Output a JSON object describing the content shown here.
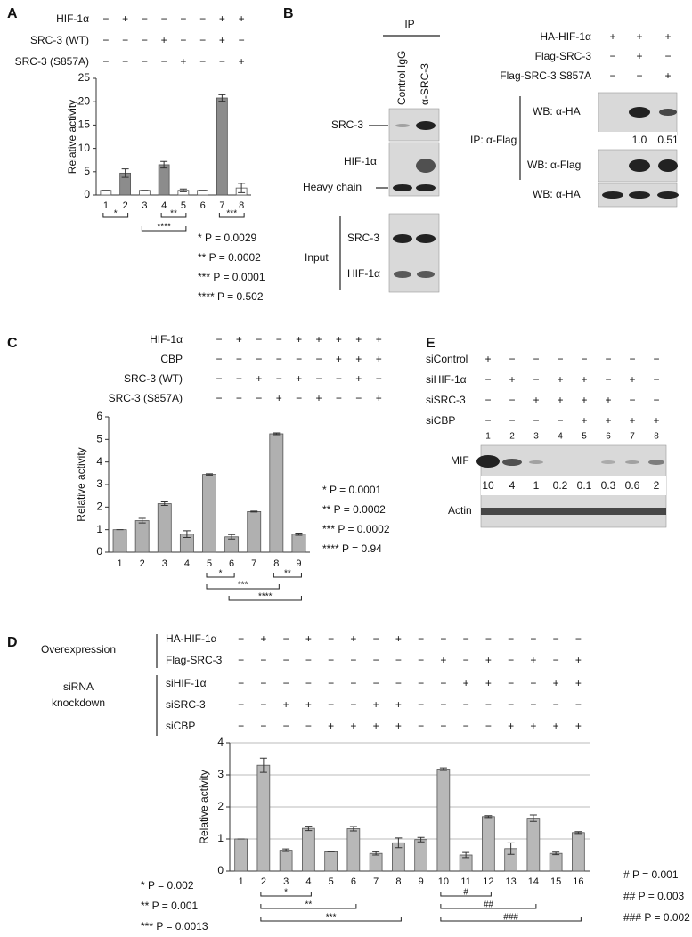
{
  "chart_data": [
    {
      "type": "bar",
      "panel": "A",
      "y_label": "Relative activity",
      "categories": [
        "1",
        "2",
        "3",
        "4",
        "5",
        "6",
        "7",
        "8"
      ],
      "values": [
        1,
        4.7,
        1,
        6.5,
        1,
        1,
        20.8,
        1.5
      ],
      "errors": [
        0,
        0.9,
        0,
        0.7,
        0.3,
        0,
        0.7,
        1.0
      ],
      "colors": [
        "#ffffff",
        "#8c8c8c",
        "#ffffff",
        "#8c8c8c",
        "#ffffff",
        "#ffffff",
        "#8c8c8c",
        "#ffffff"
      ],
      "ylim": [
        0,
        25
      ],
      "yticks": [
        0,
        5,
        10,
        15,
        20,
        25
      ],
      "grid": false,
      "conditions": [
        {
          "name": "HIF-1α",
          "signs": [
            "−",
            "+",
            "−",
            "−",
            "−",
            "−",
            "+",
            "+"
          ]
        },
        {
          "name": "SRC-3 (WT)",
          "signs": [
            "−",
            "−",
            "−",
            "+",
            "−",
            "−",
            "+",
            "−"
          ]
        },
        {
          "name": "SRC-3 (S857A)",
          "signs": [
            "−",
            "−",
            "−",
            "−",
            "+",
            "−",
            "−",
            "+"
          ]
        }
      ],
      "significance": [
        {
          "label": "*",
          "lanes": [
            "1",
            "2"
          ]
        },
        {
          "label": "**",
          "lanes": [
            "4",
            "5"
          ]
        },
        {
          "label": "***",
          "lanes": [
            "7",
            "8"
          ]
        },
        {
          "label": "****",
          "lanes": [
            "3",
            "5"
          ]
        }
      ],
      "p_values": [
        "* P = 0.0029",
        "** P = 0.0002",
        "*** P = 0.0001",
        "**** P = 0.502"
      ]
    },
    {
      "type": "bar",
      "panel": "C",
      "y_label": "Relative activity",
      "categories": [
        "1",
        "2",
        "3",
        "4",
        "5",
        "6",
        "7",
        "8",
        "9"
      ],
      "values": [
        1,
        1.4,
        2.15,
        0.8,
        3.45,
        0.68,
        1.8,
        5.25,
        0.8
      ],
      "errors": [
        0,
        0.1,
        0.08,
        0.15,
        0.03,
        0.1,
        0.02,
        0.04,
        0.05
      ],
      "color": "#b0b0b0",
      "ylim": [
        0,
        6
      ],
      "yticks": [
        0,
        1,
        2,
        3,
        4,
        5,
        6
      ],
      "grid": false,
      "conditions": [
        {
          "name": "HIF-1α",
          "signs": [
            "−",
            "+",
            "−",
            "−",
            "+",
            "+",
            "+",
            "+",
            "+"
          ]
        },
        {
          "name": "CBP",
          "signs": [
            "−",
            "−",
            "−",
            "−",
            "−",
            "−",
            "+",
            "+",
            "+"
          ]
        },
        {
          "name": "SRC-3 (WT)",
          "signs": [
            "−",
            "−",
            "+",
            "−",
            "+",
            "−",
            "−",
            "+",
            "−"
          ]
        },
        {
          "name": "SRC-3 (S857A)",
          "signs": [
            "−",
            "−",
            "−",
            "+",
            "−",
            "+",
            "−",
            "−",
            "+"
          ]
        }
      ],
      "significance": [
        {
          "label": "*",
          "lanes": [
            "5",
            "6"
          ]
        },
        {
          "label": "**",
          "lanes": [
            "8",
            "9"
          ]
        },
        {
          "label": "***",
          "lanes": [
            "5",
            "8"
          ]
        },
        {
          "label": "****",
          "lanes": [
            "6",
            "9"
          ]
        }
      ],
      "p_values": [
        "* P = 0.0001",
        "** P = 0.0002",
        "*** P = 0.0002",
        "**** P = 0.94"
      ]
    },
    {
      "type": "bar",
      "panel": "D",
      "y_label": "Relative activity",
      "categories": [
        "1",
        "2",
        "3",
        "4",
        "5",
        "6",
        "7",
        "8",
        "9",
        "10",
        "11",
        "12",
        "13",
        "14",
        "15",
        "16"
      ],
      "values": [
        1,
        3.3,
        0.65,
        1.33,
        0.6,
        1.32,
        0.55,
        0.88,
        0.98,
        3.18,
        0.5,
        1.7,
        0.7,
        1.65,
        0.55,
        1.2
      ],
      "errors": [
        0,
        0.22,
        0.04,
        0.07,
        0,
        0.07,
        0.05,
        0.15,
        0.07,
        0.04,
        0.08,
        0.03,
        0.18,
        0.1,
        0.04,
        0.03
      ],
      "color": "#b8b8b8",
      "ylim": [
        0,
        4
      ],
      "yticks": [
        0,
        1,
        2,
        3,
        4
      ],
      "grid": true,
      "condition_groups": [
        {
          "name": [
            "Overexpression"
          ],
          "conditions": [
            {
              "name": "HA-HIF-1α",
              "signs": [
                "−",
                "+",
                "−",
                "+",
                "−",
                "+",
                "−",
                "+",
                "−",
                "−",
                "−",
                "−",
                "−",
                "−",
                "−",
                "−"
              ]
            },
            {
              "name": "Flag-SRC-3",
              "signs": [
                "−",
                "−",
                "−",
                "−",
                "−",
                "−",
                "−",
                "−",
                "−",
                "+",
                "−",
                "+",
                "−",
                "+",
                "−",
                "+"
              ]
            }
          ]
        },
        {
          "name": [
            "siRNA",
            "knockdown"
          ],
          "conditions": [
            {
              "name": "siHIF-1α",
              "signs": [
                "−",
                "−",
                "−",
                "−",
                "−",
                "−",
                "−",
                "−",
                "−",
                "−",
                "+",
                "+",
                "−",
                "−",
                "+",
                "+"
              ]
            },
            {
              "name": "siSRC-3",
              "signs": [
                "−",
                "−",
                "+",
                "+",
                "−",
                "−",
                "+",
                "+",
                "−",
                "−",
                "−",
                "−",
                "−",
                "−",
                "−",
                "−"
              ]
            },
            {
              "name": "siCBP",
              "signs": [
                "−",
                "−",
                "−",
                "−",
                "+",
                "+",
                "+",
                "+",
                "−",
                "−",
                "−",
                "−",
                "+",
                "+",
                "+",
                "+"
              ]
            }
          ]
        }
      ],
      "significance": [
        {
          "label": "*",
          "lanes": [
            "2",
            "4"
          ]
        },
        {
          "label": "**",
          "lanes": [
            "2",
            "6"
          ]
        },
        {
          "label": "***",
          "lanes": [
            "2",
            "8"
          ]
        },
        {
          "label": "#",
          "lanes": [
            "10",
            "12"
          ]
        },
        {
          "label": "##",
          "lanes": [
            "10",
            "14"
          ]
        },
        {
          "label": "###",
          "lanes": [
            "10",
            "16"
          ]
        }
      ],
      "p_values": [
        "* P = 0.002",
        "** P = 0.001",
        "*** P = 0.0013",
        "# P = 0.001",
        "## P = 0.003",
        "### P = 0.002"
      ]
    }
  ],
  "western_blots": {
    "B": {
      "panel": "B",
      "ip": "IP",
      "ip_columns": [
        "Control IgG",
        "α-SRC-3"
      ],
      "ip_rows": [
        "SRC-3",
        "HIF-1α",
        "Heavy chain"
      ],
      "input": "Input",
      "input_rows": [
        "SRC-3",
        "HIF-1α"
      ],
      "co_ip": {
        "conditions": [
          {
            "name": "HA-HIF-1α",
            "signs": [
              "+",
              "+",
              "+"
            ]
          },
          {
            "name": "Flag-SRC-3",
            "signs": [
              "−",
              "+",
              "−"
            ]
          },
          {
            "name": "Flag-SRC-3 S857A",
            "signs": [
              "−",
              "−",
              "+"
            ]
          }
        ],
        "ip": "IP: α-Flag",
        "rows": [
          "WB: α-HA",
          "WB: α-Flag"
        ],
        "ha_ratios": [
          "1.0",
          "0.51"
        ],
        "input_row": "WB: α-HA"
      }
    },
    "E": {
      "panel": "E",
      "conditions": [
        {
          "name": "siControl",
          "signs": [
            "+",
            "−",
            "−",
            "−",
            "−",
            "−",
            "−",
            "−"
          ]
        },
        {
          "name": "siHIF-1α",
          "signs": [
            "−",
            "+",
            "−",
            "+",
            "+",
            "−",
            "+",
            "−"
          ]
        },
        {
          "name": "siSRC-3",
          "signs": [
            "−",
            "−",
            "+",
            "+",
            "+",
            "+",
            "−",
            "−"
          ]
        },
        {
          "name": "siCBP",
          "signs": [
            "−",
            "−",
            "−",
            "−",
            "+",
            "+",
            "+",
            "+"
          ]
        }
      ],
      "lanes": [
        "1",
        "2",
        "3",
        "4",
        "5",
        "6",
        "7",
        "8"
      ],
      "rows": [
        "MIF",
        "Actin"
      ],
      "mif_levels": [
        "10",
        "4",
        "1",
        "0.2",
        "0.1",
        "0.3",
        "0.6",
        "2"
      ]
    }
  }
}
